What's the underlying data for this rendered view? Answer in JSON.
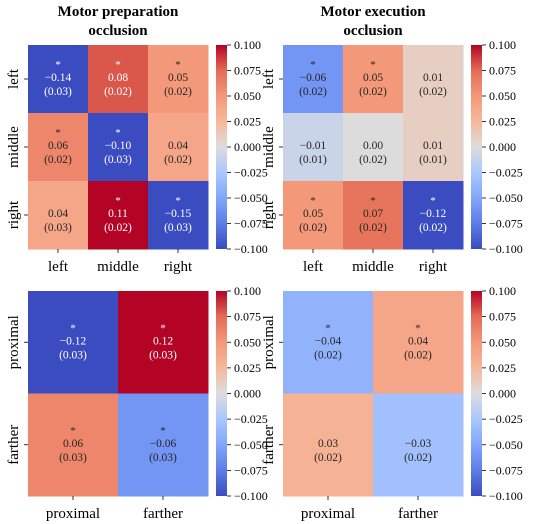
{
  "chart_data": [
    {
      "type": "heatmap",
      "title": [
        "Motor preparation",
        "occlusion"
      ],
      "x_categories": [
        "left",
        "middle",
        "right"
      ],
      "y_categories": [
        "left",
        "middle",
        "right"
      ],
      "values": [
        [
          -0.14,
          0.08,
          0.05
        ],
        [
          0.06,
          -0.1,
          0.04
        ],
        [
          0.04,
          0.11,
          -0.15
        ]
      ],
      "labels": [
        [
          "−0.14",
          "0.08",
          "0.05"
        ],
        [
          "0.06",
          "−0.10",
          "0.04"
        ],
        [
          "0.04",
          "0.11",
          "−0.15"
        ]
      ],
      "errors": [
        [
          "(0.03)",
          "(0.02)",
          "(0.02)"
        ],
        [
          "(0.02)",
          "(0.03)",
          "(0.02)"
        ],
        [
          "(0.03)",
          "(0.02)",
          "(0.03)"
        ]
      ],
      "significant": [
        [
          true,
          true,
          true
        ],
        [
          true,
          true,
          false
        ],
        [
          false,
          true,
          true
        ]
      ],
      "colorbar_range": [
        -0.1,
        0.1
      ],
      "colorbar_ticks": [
        "0.100",
        "0.075",
        "0.050",
        "0.025",
        "0.000",
        "−0.025",
        "−0.050",
        "−0.075",
        "−0.100"
      ],
      "star_label": "*",
      "colormap": "coolwarm"
    },
    {
      "type": "heatmap",
      "title": [
        "Motor execution",
        "occlusion"
      ],
      "x_categories": [
        "left",
        "middle",
        "right"
      ],
      "y_categories": [
        "left",
        "middle",
        "right"
      ],
      "values": [
        [
          -0.06,
          0.05,
          0.01
        ],
        [
          -0.01,
          0.0,
          0.01
        ],
        [
          0.05,
          0.07,
          -0.12
        ]
      ],
      "labels": [
        [
          "−0.06",
          "0.05",
          "0.01"
        ],
        [
          "−0.01",
          "0.00",
          "0.01"
        ],
        [
          "0.05",
          "0.07",
          "−0.12"
        ]
      ],
      "errors": [
        [
          "(0.02)",
          "(0.02)",
          "(0.02)"
        ],
        [
          "(0.01)",
          "(0.02)",
          "(0.01)"
        ],
        [
          "(0.02)",
          "(0.02)",
          "(0.02)"
        ]
      ],
      "significant": [
        [
          true,
          true,
          false
        ],
        [
          false,
          false,
          false
        ],
        [
          true,
          true,
          true
        ]
      ],
      "colorbar_range": [
        -0.1,
        0.1
      ],
      "colorbar_ticks": [
        "0.100",
        "0.075",
        "0.050",
        "0.025",
        "0.000",
        "−0.025",
        "−0.050",
        "−0.075",
        "−0.100"
      ],
      "star_label": "*",
      "colormap": "coolwarm"
    },
    {
      "type": "heatmap",
      "title": [],
      "x_categories": [
        "proximal",
        "farther"
      ],
      "y_categories": [
        "proximal",
        "farther"
      ],
      "values": [
        [
          -0.12,
          0.12
        ],
        [
          0.06,
          -0.06
        ]
      ],
      "labels": [
        [
          "−0.12",
          "0.12"
        ],
        [
          "0.06",
          "−0.06"
        ]
      ],
      "errors": [
        [
          "(0.03)",
          "(0.03)"
        ],
        [
          "(0.03)",
          "(0.03)"
        ]
      ],
      "significant": [
        [
          true,
          true
        ],
        [
          true,
          true
        ]
      ],
      "colorbar_range": [
        -0.1,
        0.1
      ],
      "colorbar_ticks": [
        "0.100",
        "0.075",
        "0.050",
        "0.025",
        "0.000",
        "−0.025",
        "−0.050",
        "−0.075",
        "−0.100"
      ],
      "star_label": "*",
      "colormap": "coolwarm"
    },
    {
      "type": "heatmap",
      "title": [],
      "x_categories": [
        "proximal",
        "farther"
      ],
      "y_categories": [
        "proximal",
        "farther"
      ],
      "values": [
        [
          -0.04,
          0.04
        ],
        [
          0.03,
          -0.03
        ]
      ],
      "labels": [
        [
          "−0.04",
          "0.04"
        ],
        [
          "0.03",
          "−0.03"
        ]
      ],
      "errors": [
        [
          "(0.02)",
          "(0.02)"
        ],
        [
          "(0.02)",
          "(0.02)"
        ]
      ],
      "significant": [
        [
          true,
          true
        ],
        [
          false,
          false
        ]
      ],
      "colorbar_range": [
        -0.1,
        0.1
      ],
      "colorbar_ticks": [
        "0.100",
        "0.075",
        "0.050",
        "0.025",
        "0.000",
        "−0.025",
        "−0.050",
        "−0.075",
        "−0.100"
      ],
      "star_label": "*",
      "colormap": "coolwarm"
    }
  ]
}
